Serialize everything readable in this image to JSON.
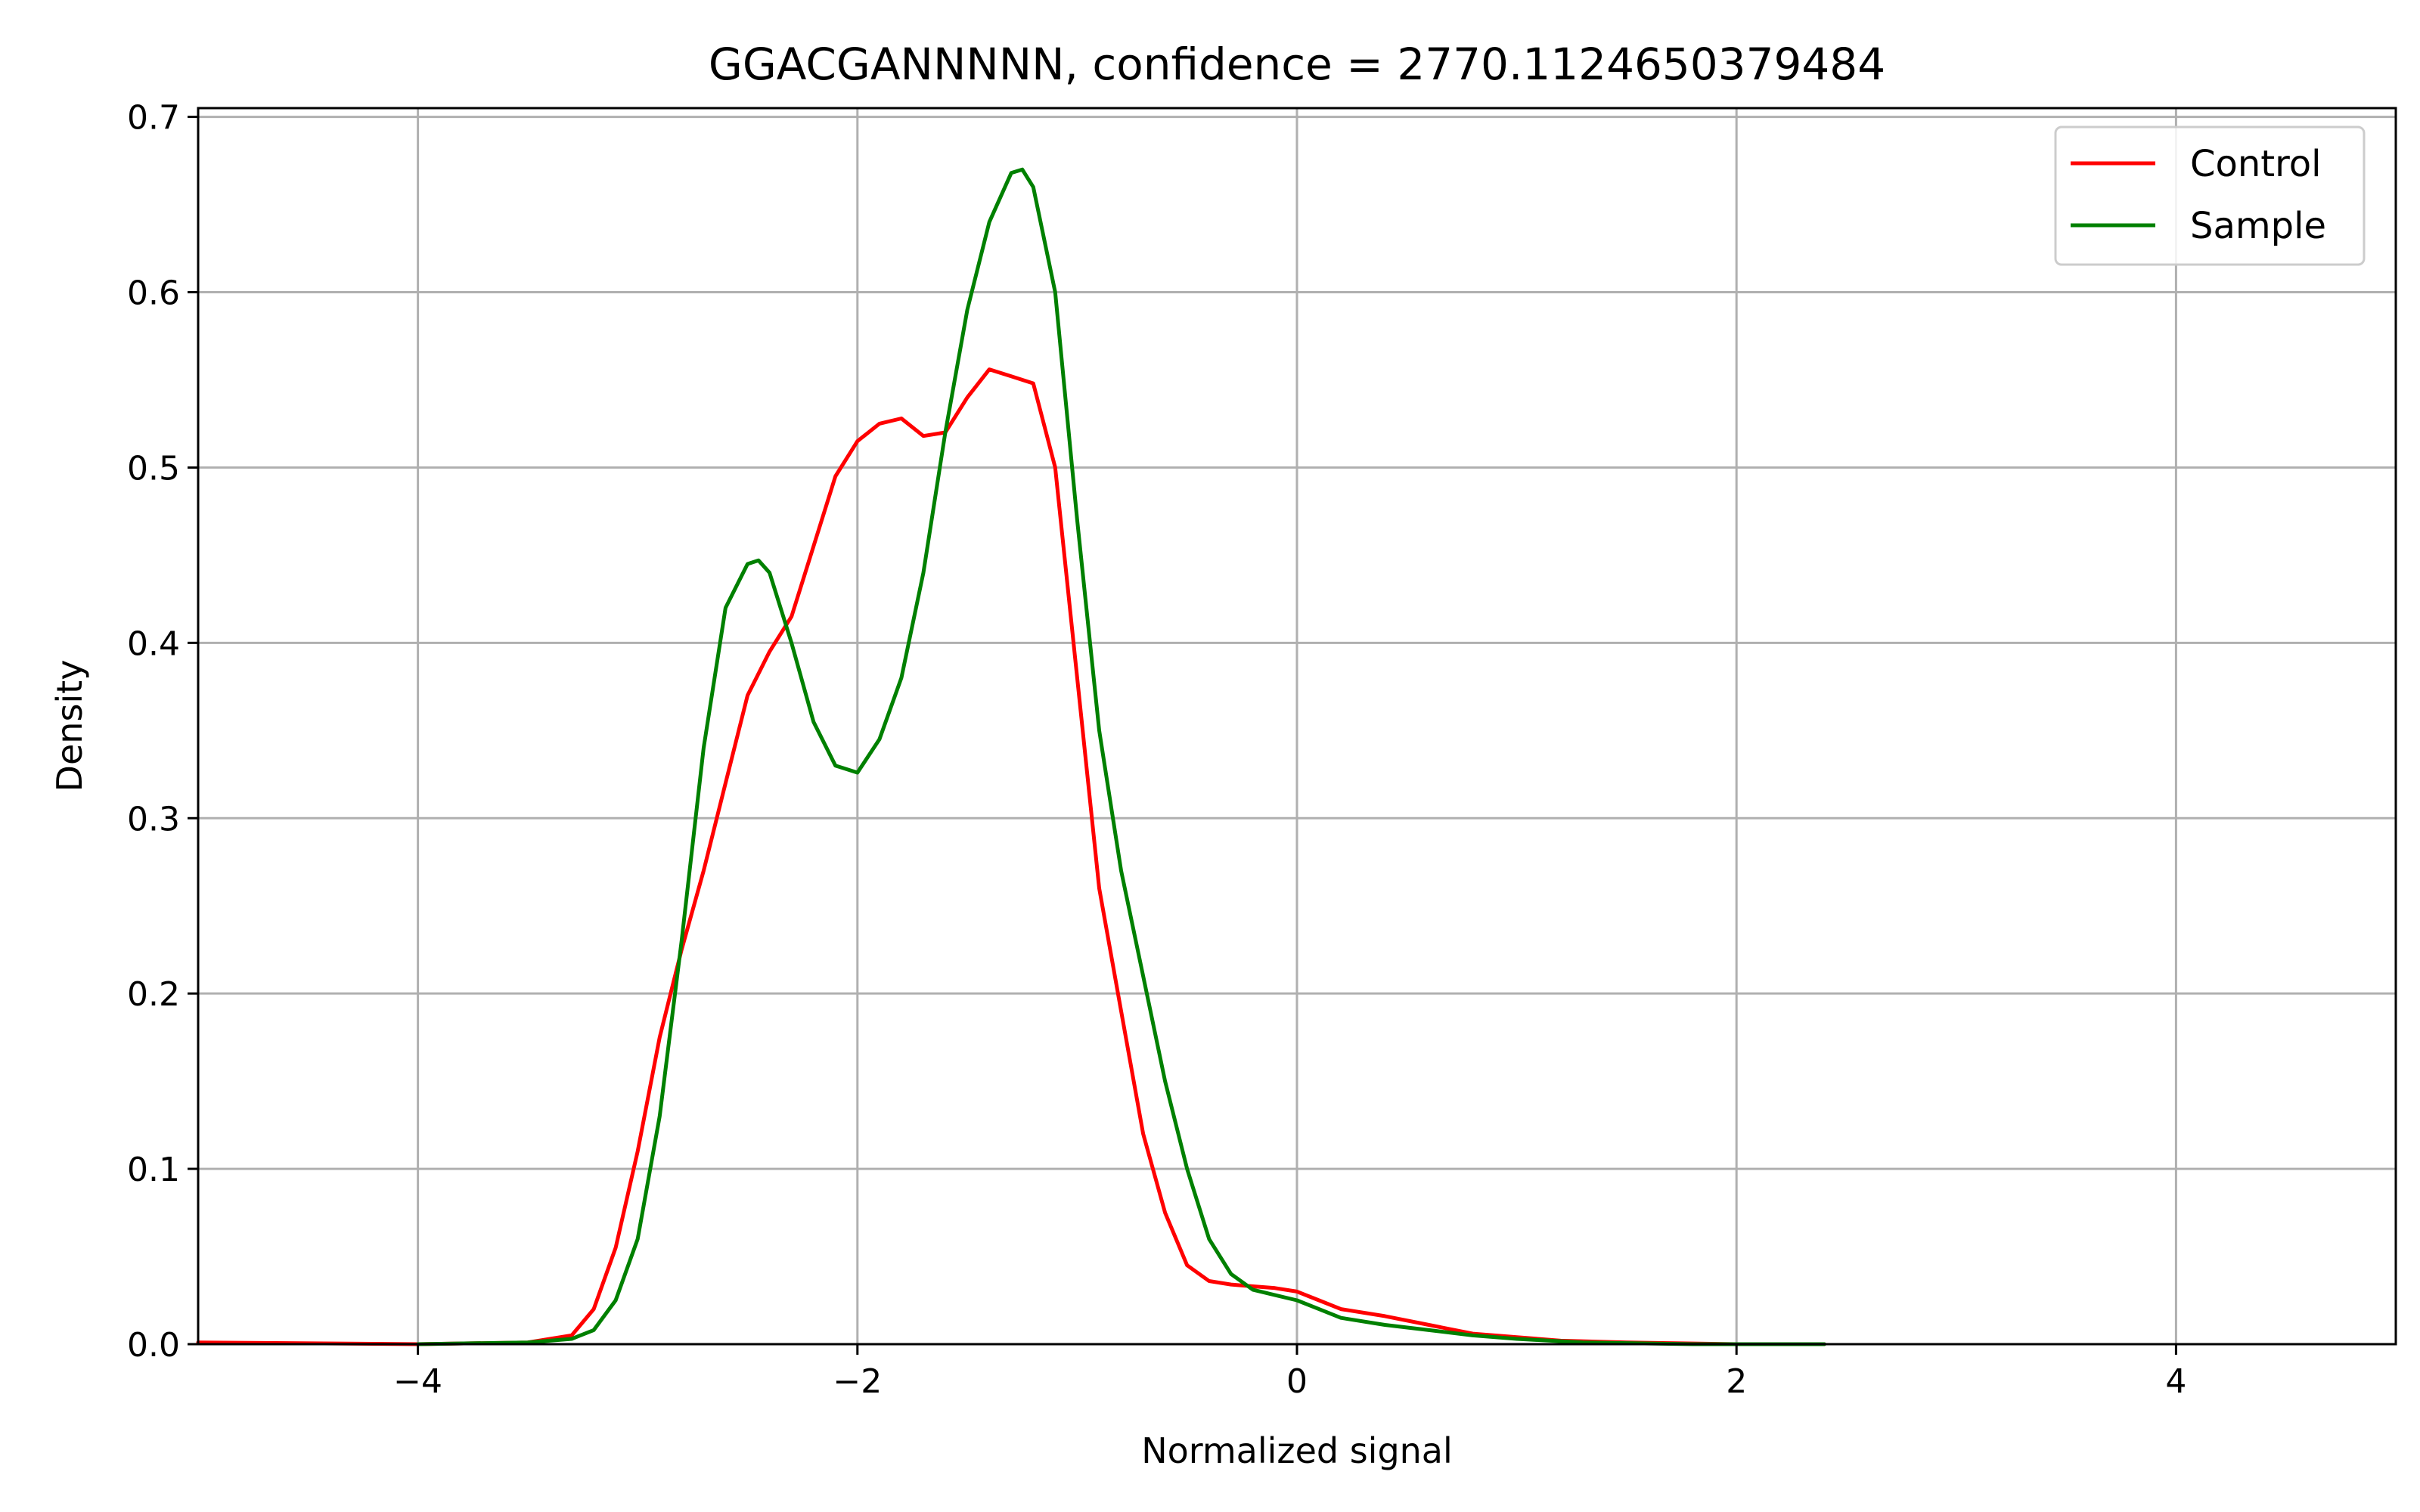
{
  "chart_data": {
    "type": "line",
    "title": "GGACGANNNNN, confidence = 2770.1124650379484",
    "xlabel": "Normalized signal",
    "ylabel": "Density",
    "xlim": [
      -5,
      5
    ],
    "ylim": [
      0,
      0.705
    ],
    "x_ticks": [
      -4,
      -2,
      0,
      2,
      4
    ],
    "x_tick_labels": [
      "−4",
      "−2",
      "0",
      "2",
      "4"
    ],
    "y_ticks": [
      0,
      0.1,
      0.2,
      0.3,
      0.4,
      0.5,
      0.6,
      0.7
    ],
    "y_tick_labels": [
      "0.0",
      "0.1",
      "0.2",
      "0.3",
      "0.4",
      "0.5",
      "0.6",
      "0.7"
    ],
    "grid": true,
    "legend_position": "top-right",
    "series": [
      {
        "name": "Control",
        "color": "#ff0000",
        "points": [
          [
            -5.0,
            0.001
          ],
          [
            -4.0,
            0.0
          ],
          [
            -3.5,
            0.001
          ],
          [
            -3.3,
            0.005
          ],
          [
            -3.2,
            0.02
          ],
          [
            -3.1,
            0.055
          ],
          [
            -3.0,
            0.11
          ],
          [
            -2.9,
            0.175
          ],
          [
            -2.8,
            0.225
          ],
          [
            -2.7,
            0.27
          ],
          [
            -2.6,
            0.32
          ],
          [
            -2.5,
            0.37
          ],
          [
            -2.4,
            0.395
          ],
          [
            -2.3,
            0.415
          ],
          [
            -2.2,
            0.455
          ],
          [
            -2.1,
            0.495
          ],
          [
            -2.0,
            0.515
          ],
          [
            -1.9,
            0.525
          ],
          [
            -1.8,
            0.528
          ],
          [
            -1.7,
            0.518
          ],
          [
            -1.6,
            0.52
          ],
          [
            -1.5,
            0.54
          ],
          [
            -1.4,
            0.556
          ],
          [
            -1.3,
            0.552
          ],
          [
            -1.2,
            0.548
          ],
          [
            -1.1,
            0.5
          ],
          [
            -1.0,
            0.38
          ],
          [
            -0.9,
            0.26
          ],
          [
            -0.8,
            0.19
          ],
          [
            -0.7,
            0.12
          ],
          [
            -0.6,
            0.075
          ],
          [
            -0.5,
            0.045
          ],
          [
            -0.4,
            0.036
          ],
          [
            -0.3,
            0.034
          ],
          [
            -0.2,
            0.033
          ],
          [
            -0.1,
            0.032
          ],
          [
            0.0,
            0.03
          ],
          [
            0.1,
            0.025
          ],
          [
            0.2,
            0.02
          ],
          [
            0.4,
            0.016
          ],
          [
            0.6,
            0.011
          ],
          [
            0.8,
            0.006
          ],
          [
            1.0,
            0.004
          ],
          [
            1.2,
            0.002
          ],
          [
            1.5,
            0.001
          ],
          [
            2.0,
            0.0
          ],
          [
            2.4,
            0.0
          ]
        ]
      },
      {
        "name": "Sample",
        "color": "#008000",
        "points": [
          [
            -4.0,
            0.0
          ],
          [
            -3.5,
            0.001
          ],
          [
            -3.3,
            0.003
          ],
          [
            -3.2,
            0.008
          ],
          [
            -3.1,
            0.025
          ],
          [
            -3.0,
            0.06
          ],
          [
            -2.9,
            0.13
          ],
          [
            -2.8,
            0.23
          ],
          [
            -2.7,
            0.34
          ],
          [
            -2.6,
            0.42
          ],
          [
            -2.5,
            0.445
          ],
          [
            -2.45,
            0.447
          ],
          [
            -2.4,
            0.44
          ],
          [
            -2.3,
            0.4
          ],
          [
            -2.2,
            0.355
          ],
          [
            -2.1,
            0.33
          ],
          [
            -2.0,
            0.326
          ],
          [
            -1.9,
            0.345
          ],
          [
            -1.8,
            0.38
          ],
          [
            -1.7,
            0.44
          ],
          [
            -1.6,
            0.52
          ],
          [
            -1.5,
            0.59
          ],
          [
            -1.4,
            0.64
          ],
          [
            -1.3,
            0.668
          ],
          [
            -1.25,
            0.67
          ],
          [
            -1.2,
            0.66
          ],
          [
            -1.1,
            0.6
          ],
          [
            -1.0,
            0.47
          ],
          [
            -0.9,
            0.35
          ],
          [
            -0.8,
            0.27
          ],
          [
            -0.7,
            0.21
          ],
          [
            -0.6,
            0.15
          ],
          [
            -0.5,
            0.1
          ],
          [
            -0.4,
            0.06
          ],
          [
            -0.3,
            0.04
          ],
          [
            -0.2,
            0.031
          ],
          [
            -0.1,
            0.028
          ],
          [
            0.0,
            0.025
          ],
          [
            0.1,
            0.02
          ],
          [
            0.2,
            0.015
          ],
          [
            0.4,
            0.011
          ],
          [
            0.6,
            0.008
          ],
          [
            0.8,
            0.005
          ],
          [
            1.0,
            0.003
          ],
          [
            1.3,
            0.001
          ],
          [
            1.8,
            0.0
          ],
          [
            2.4,
            0.0
          ]
        ]
      }
    ]
  }
}
